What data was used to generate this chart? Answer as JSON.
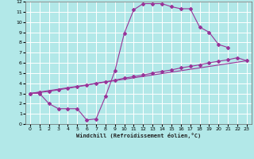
{
  "bg_color": "#b2e8e8",
  "grid_color": "#ffffff",
  "line_color": "#993399",
  "xlim": [
    -0.5,
    23.5
  ],
  "ylim": [
    0,
    12
  ],
  "xticks": [
    0,
    1,
    2,
    3,
    4,
    5,
    6,
    7,
    8,
    9,
    10,
    11,
    12,
    13,
    14,
    15,
    16,
    17,
    18,
    19,
    20,
    21,
    22,
    23
  ],
  "yticks": [
    0,
    1,
    2,
    3,
    4,
    5,
    6,
    7,
    8,
    9,
    10,
    11,
    12
  ],
  "xlabel": "Windchill (Refroidissement éolien,°C)",
  "line1_x": [
    0,
    1,
    2,
    3,
    4,
    5,
    6,
    7,
    8,
    9,
    10,
    11,
    12,
    13,
    14,
    15,
    16,
    17,
    18,
    19,
    20,
    21
  ],
  "line1_y": [
    3.0,
    3.0,
    2.0,
    1.5,
    1.5,
    1.5,
    0.4,
    0.5,
    2.7,
    5.2,
    8.9,
    11.2,
    11.8,
    11.8,
    11.8,
    11.5,
    11.3,
    11.3,
    9.5,
    9.0,
    7.8,
    7.5
  ],
  "line2_x": [
    0,
    1,
    2,
    3,
    4,
    5,
    6,
    7,
    8,
    9,
    10,
    11,
    12,
    13,
    14,
    15,
    16,
    17,
    18,
    19,
    20,
    21,
    22,
    23
  ],
  "line2_y": [
    3.0,
    3.1,
    3.2,
    3.35,
    3.5,
    3.65,
    3.8,
    4.0,
    4.15,
    4.3,
    4.5,
    4.65,
    4.8,
    5.0,
    5.15,
    5.3,
    5.5,
    5.65,
    5.8,
    6.0,
    6.15,
    6.3,
    6.5,
    6.2
  ],
  "line3_x": [
    0,
    23
  ],
  "line3_y": [
    3.0,
    6.2
  ]
}
